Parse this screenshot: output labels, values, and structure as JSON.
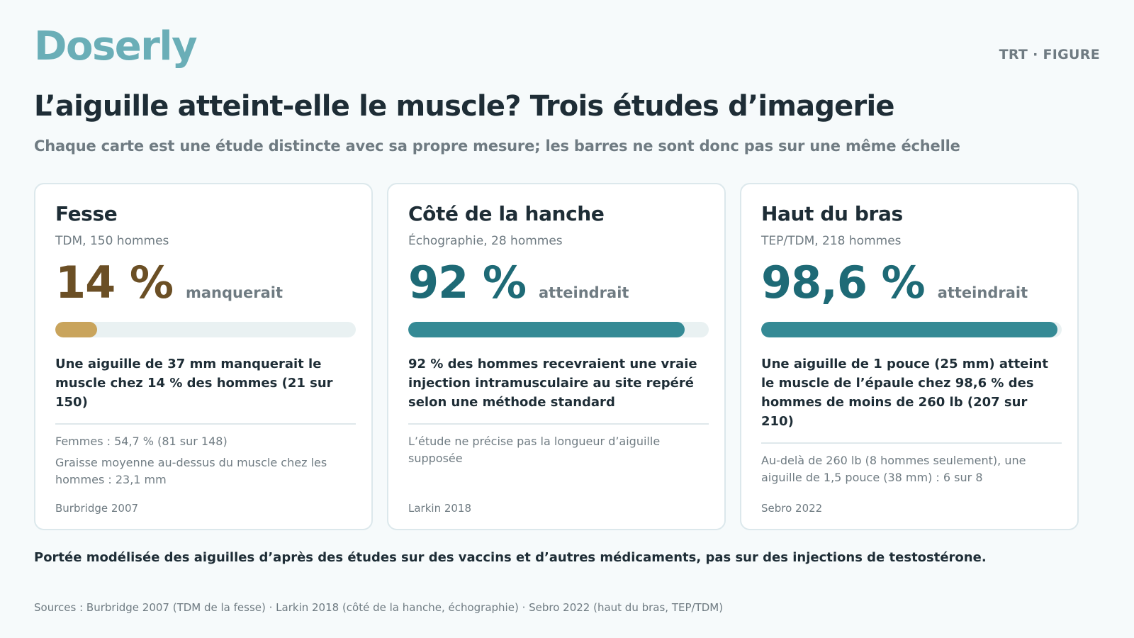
{
  "header": {
    "brand": "Doserly",
    "tag": "TRT · FIGURE",
    "title": "L’aiguille atteint-elle le muscle? Trois études d’imagerie",
    "subtitle": "Chaque carte est une étude distincte avec sa propre mesure; les barres ne sont donc pas sur une même échelle"
  },
  "colors": {
    "brand": "#6aaeb7",
    "miss": "#6b4f25",
    "miss_bar": "#c9a45c",
    "reach": "#1e6a76",
    "reach_bar": "#358a95",
    "track": "#e9f1f2"
  },
  "cards": [
    {
      "title": "Fesse",
      "method": "TDM, 150 hommes",
      "stat": "14 %",
      "stat_label": "manquerait",
      "fraction": 0.14,
      "tone": "miss",
      "description": "Une aiguille de 37 mm manquerait le muscle chez 14 % des hommes (21 sur 150)",
      "notes": [
        "Femmes : 54,7 % (81 sur 148)",
        "Graisse moyenne au-dessus du muscle chez les hommes : 23,1 mm"
      ],
      "source": "Burbridge 2007"
    },
    {
      "title": "Côté de la hanche",
      "method": "Échographie, 28 hommes",
      "stat": "92 %",
      "stat_label": "atteindrait",
      "fraction": 0.92,
      "tone": "reach",
      "description": "92 % des hommes recevraient une vraie injection intramusculaire au site repéré selon une méthode standard",
      "notes": [
        "L’étude ne précise pas la longueur d’aiguille supposée"
      ],
      "source": "Larkin 2018"
    },
    {
      "title": "Haut du bras",
      "method": "TEP/TDM, 218 hommes",
      "stat": "98,6 %",
      "stat_label": "atteindrait",
      "fraction": 0.986,
      "tone": "reach",
      "description": "Une aiguille de 1 pouce (25 mm) atteint le muscle de l’épaule chez 98,6 % des hommes de moins de 260 lb (207 sur 210)",
      "notes": [
        "Au-delà de 260 lb (8 hommes seulement), une aiguille de 1,5 pouce (38 mm) : 6 sur 8"
      ],
      "source": "Sebro 2022"
    }
  ],
  "footer": {
    "disclaimer": "Portée modélisée des aiguilles d’après des études sur des vaccins et d’autres médicaments, pas sur des injections de testostérone.",
    "sources": "Sources : Burbridge 2007 (TDM de la fesse) · Larkin 2018 (côté de la hanche, échographie) · Sebro 2022 (haut du bras, TEP/TDM)"
  }
}
